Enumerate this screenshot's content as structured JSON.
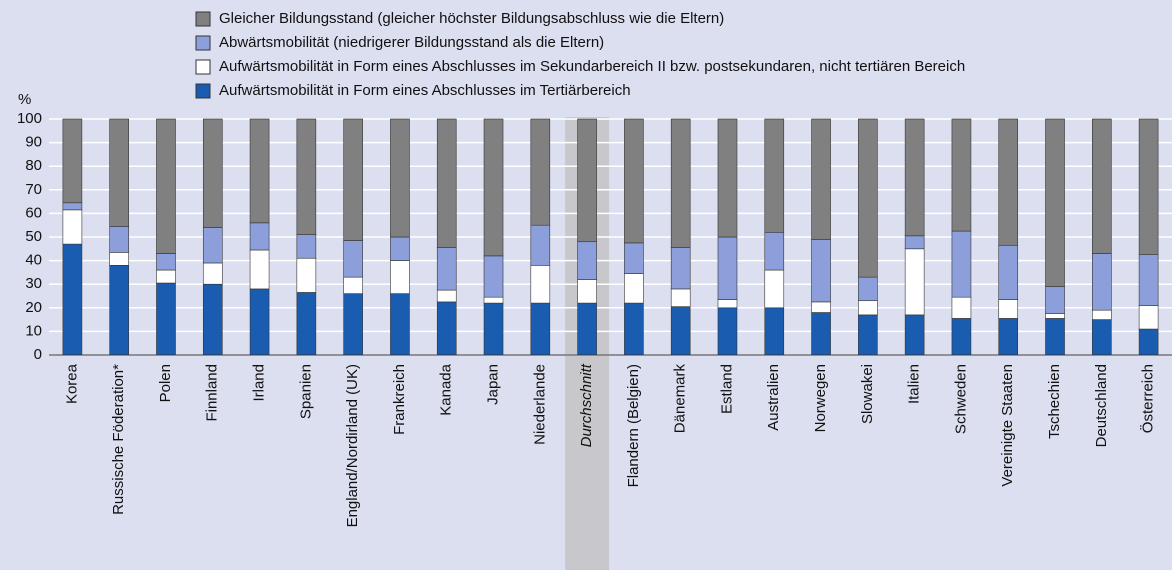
{
  "chart_data": {
    "type": "stacked_bar",
    "y_label": "%",
    "categories": [
      "Korea",
      "Russische Föderation*",
      "Polen",
      "Finnland",
      "Irland",
      "Spanien",
      "England/Nordirland (UK)",
      "Frankreich",
      "Kanada",
      "Japan",
      "Niederlande",
      "Durchschnitt",
      "Flandern (Belgien)",
      "Dänemark",
      "Estland",
      "Australien",
      "Norwegen",
      "Slowakei",
      "Italien",
      "Schweden",
      "Vereinigte Staaten",
      "Tschechien",
      "Deutschland",
      "Österreich"
    ],
    "highlight": 11,
    "series": [
      {
        "name": "Aufwärtsmobilität in Form eines Abschlusses im Tertiärbereich",
        "color": "#1a5cb0",
        "values": [
          47,
          38,
          30.5,
          30,
          28,
          26.5,
          26,
          26,
          22.5,
          22,
          22,
          22,
          22,
          20.5,
          20,
          20,
          18,
          17,
          17,
          15.5,
          15.5,
          15.5,
          15,
          11
        ]
      },
      {
        "name": "Aufwärtsmobilität in Form eines Abschlusses im Sekundarbereich II bzw. postsekundaren, nicht tertiären Bereich",
        "color": "#ffffff",
        "values": [
          14.5,
          5.5,
          5.5,
          9,
          16.5,
          14.5,
          7,
          14,
          5,
          2.5,
          16,
          10,
          12.5,
          7.5,
          3.5,
          16,
          4.5,
          6,
          28,
          9,
          8,
          2,
          4,
          10
        ]
      },
      {
        "name": "Abwärtsmobilität (niedrigerer Bildungsstand als die Eltern)",
        "color": "#8c9fdb",
        "values": [
          3,
          11,
          7,
          15,
          11.5,
          10,
          15.5,
          10,
          18,
          17.5,
          17,
          16,
          13,
          17.5,
          26.5,
          16,
          26.5,
          10,
          5.5,
          28,
          23,
          11.5,
          24,
          21.5
        ]
      },
      {
        "name": "Gleicher Bildungsstand (gleicher höchster Bildungsabschluss wie die Eltern)",
        "color": "#808080",
        "values": [
          35.5,
          45.5,
          57,
          46,
          44,
          49,
          51.5,
          50,
          54.5,
          58,
          45,
          52,
          52.5,
          54.5,
          50,
          48,
          51,
          67,
          49.5,
          47.5,
          53.5,
          71,
          57,
          57.5
        ]
      }
    ],
    "ylim": [
      0,
      100
    ],
    "yticks": [
      0,
      10,
      20,
      30,
      40,
      50,
      60,
      70,
      80,
      90,
      100
    ],
    "grid": true
  }
}
